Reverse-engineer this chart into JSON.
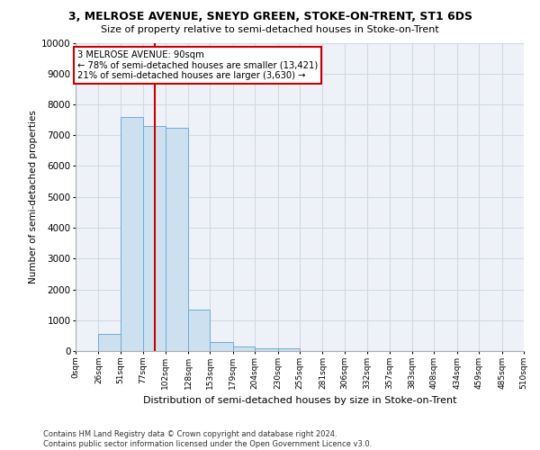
{
  "title1": "3, MELROSE AVENUE, SNEYD GREEN, STOKE-ON-TRENT, ST1 6DS",
  "title2": "Size of property relative to semi-detached houses in Stoke-on-Trent",
  "xlabel": "Distribution of semi-detached houses by size in Stoke-on-Trent",
  "ylabel": "Number of semi-detached properties",
  "footer": "Contains HM Land Registry data © Crown copyright and database right 2024.\nContains public sector information licensed under the Open Government Licence v3.0.",
  "bin_edges": [
    0,
    26,
    51,
    77,
    102,
    128,
    153,
    179,
    204,
    230,
    255,
    281,
    306,
    332,
    357,
    383,
    408,
    434,
    459,
    485,
    510
  ],
  "bar_heights": [
    0,
    550,
    7600,
    7300,
    7250,
    1350,
    300,
    150,
    100,
    80,
    0,
    0,
    0,
    0,
    0,
    0,
    0,
    0,
    0,
    0
  ],
  "bar_color": "#cce0f0",
  "bar_edgecolor": "#6baed6",
  "redline_x": 90,
  "ylim": [
    0,
    10000
  ],
  "yticks": [
    0,
    1000,
    2000,
    3000,
    4000,
    5000,
    6000,
    7000,
    8000,
    9000,
    10000
  ],
  "annotation_title": "3 MELROSE AVENUE: 90sqm",
  "annotation_line1": "← 78% of semi-detached houses are smaller (13,421)",
  "annotation_line2": "21% of semi-detached houses are larger (3,630) →",
  "annotation_box_color": "#ffffff",
  "annotation_box_edgecolor": "#cc0000",
  "grid_color": "#d0d8e8",
  "background_color": "#eef2f8"
}
